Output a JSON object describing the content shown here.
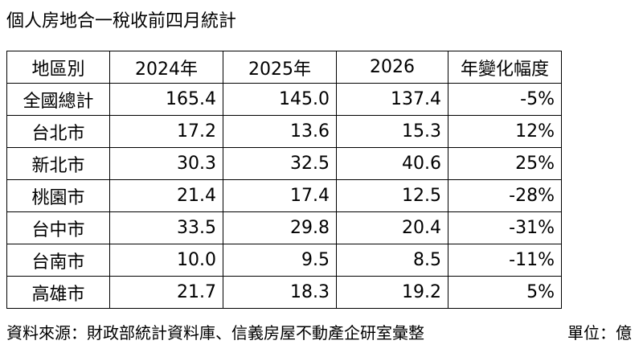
{
  "title": "個人房地合一稅收前四月統計",
  "table": {
    "headers": [
      "地區別",
      "2024年",
      "2025年",
      "2026",
      "年變化幅度"
    ],
    "rows": [
      [
        "全國總計",
        "165.4",
        "145.0",
        "137.4",
        "-5%"
      ],
      [
        "台北市",
        "17.2",
        "13.6",
        "15.3",
        "12%"
      ],
      [
        "新北市",
        "30.3",
        "32.5",
        "40.6",
        "25%"
      ],
      [
        "桃園市",
        "21.4",
        "17.4",
        "12.5",
        "-28%"
      ],
      [
        "台中市",
        "33.5",
        "29.8",
        "20.4",
        "-31%"
      ],
      [
        "台南市",
        "10.0",
        "9.5",
        "8.5",
        "-11%"
      ],
      [
        "高雄市",
        "21.7",
        "18.3",
        "19.2",
        "5%"
      ]
    ]
  },
  "footer": {
    "source": "資料來源：財政部統計資料庫、信義房屋不動產企研室彙整",
    "unit": "單位：億"
  }
}
